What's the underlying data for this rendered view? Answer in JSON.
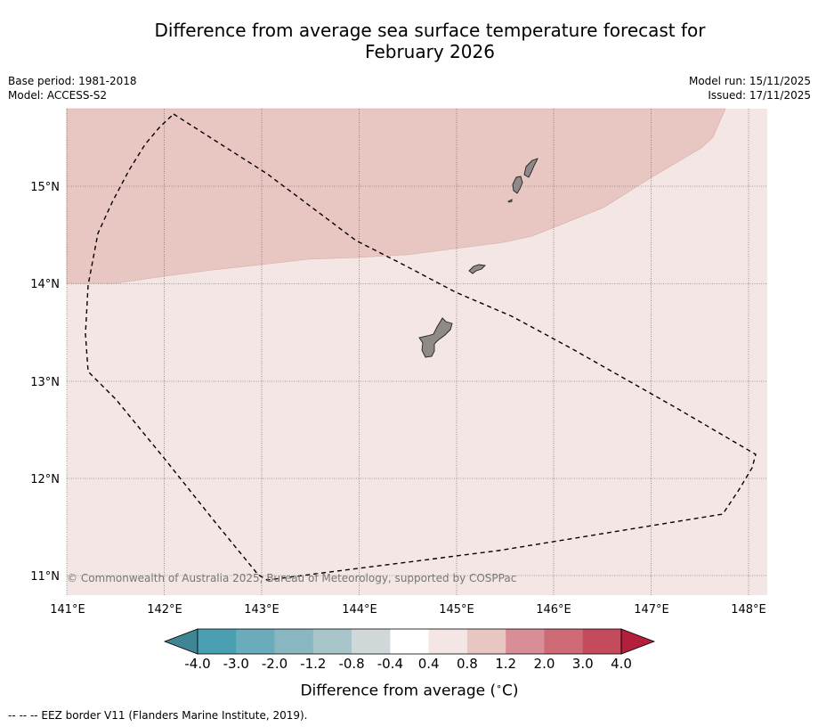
{
  "title": {
    "line1": "Difference from average sea surface temperature forecast for",
    "line2": "February 2026"
  },
  "info": {
    "base_period": "Base period: 1981-2018",
    "model": "Model: ACCESS-S2",
    "model_run": "Model run: 15/11/2025",
    "issued": "Issued: 17/11/2025"
  },
  "map": {
    "lon_labels": [
      "141°E",
      "142°E",
      "143°E",
      "144°E",
      "145°E",
      "146°E",
      "147°E",
      "148°E"
    ],
    "lat_labels": [
      "15°N",
      "14°N",
      "13°N",
      "12°N",
      "11°N"
    ],
    "copyright": "© Commonwealth of Australia 2025, Bureau of Meteorology, supported by COSPPac",
    "fill_colors": {
      "anomaly_0_4_to_0_8": "#f4e6e5",
      "anomaly_0_8_to_1_2": "#e8c6c2"
    }
  },
  "colorbar": {
    "ticks": [
      "-4.0",
      "-3.0",
      "-2.0",
      "-1.2",
      "-0.8",
      "-0.4",
      "0.4",
      "0.8",
      "1.2",
      "2.0",
      "3.0",
      "4.0"
    ],
    "colors": [
      "#4a9fb0",
      "#6aacbb",
      "#8ab6c2",
      "#a8c5ca",
      "#d0d8da",
      "#ffffff",
      "#f4e6e5",
      "#e8c6c2",
      "#d88e96",
      "#cd6a76",
      "#c44b5c"
    ],
    "under_color": "#3f8594",
    "over_color": "#b41f3e",
    "label": "Difference from average (",
    "label_unit": "C)",
    "label_degree": "∘"
  },
  "legend": {
    "eez": "--  --  -- EEZ border V11 (Flanders Marine Institute, 2019)."
  }
}
